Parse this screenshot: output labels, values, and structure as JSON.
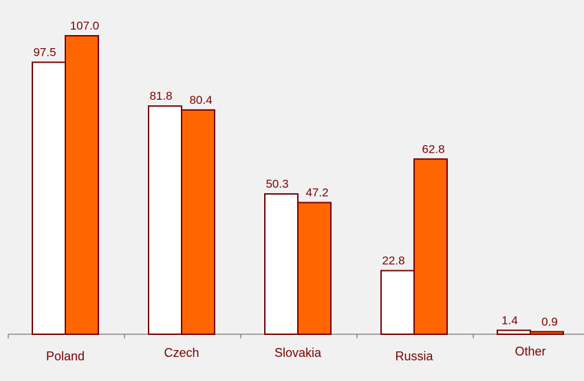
{
  "chart_data": {
    "type": "bar",
    "categories": [
      "Poland",
      "Czech",
      "Slovakia",
      "Russia",
      "Other"
    ],
    "series": [
      {
        "values": [
          97.5,
          81.8,
          50.3,
          22.8,
          1.4
        ]
      },
      {
        "values": [
          107.0,
          80.4,
          47.2,
          62.8,
          0.9
        ]
      }
    ],
    "value_labels": [
      [
        "97.5",
        "81.8",
        "50.3",
        "22.8",
        "1.4"
      ],
      [
        "107.0",
        "80.4",
        "47.2",
        "62.8",
        "0.9"
      ]
    ],
    "ylim": [
      0,
      107.0
    ],
    "grid": false,
    "legend": "none",
    "colors": {
      "background": "#f1f1f1",
      "series": [
        "#ffffff",
        "#ff6600"
      ],
      "outline": "#7a0000",
      "axis": "#555555",
      "text": "#7a0000"
    }
  }
}
